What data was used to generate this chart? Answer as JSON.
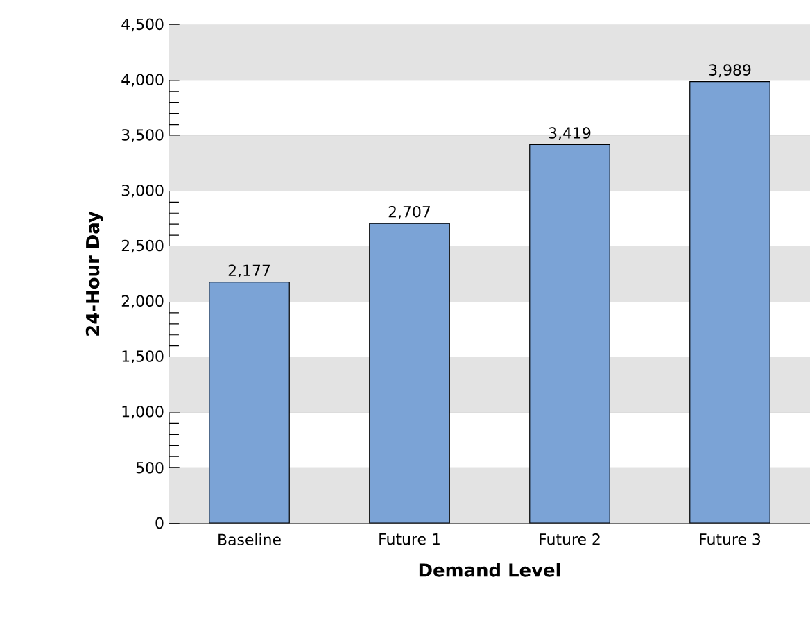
{
  "chart_data": {
    "type": "bar",
    "xlabel": "Demand Level",
    "ylabel": "24-Hour Day",
    "categories": [
      "Baseline",
      "Future 1",
      "Future 2",
      "Future 3"
    ],
    "values": [
      2177,
      2707,
      3419,
      3989
    ],
    "value_labels": [
      "2,177",
      "2,707",
      "3,419",
      "3,989"
    ],
    "color": "#7ba3d6",
    "ylim": [
      0,
      4500
    ],
    "yticks": [
      {
        "value": 0,
        "label": "0"
      },
      {
        "value": 500,
        "label": "500"
      },
      {
        "value": 1000,
        "label": "1,000"
      },
      {
        "value": 1500,
        "label": "1,500"
      },
      {
        "value": 2000,
        "label": "2,000"
      },
      {
        "value": 2500,
        "label": "2,500"
      },
      {
        "value": 3000,
        "label": "3,000"
      },
      {
        "value": 3500,
        "label": "3,500"
      },
      {
        "value": 4000,
        "label": "4,000"
      },
      {
        "value": 4500,
        "label": "4,500"
      }
    ],
    "grid": "y"
  }
}
